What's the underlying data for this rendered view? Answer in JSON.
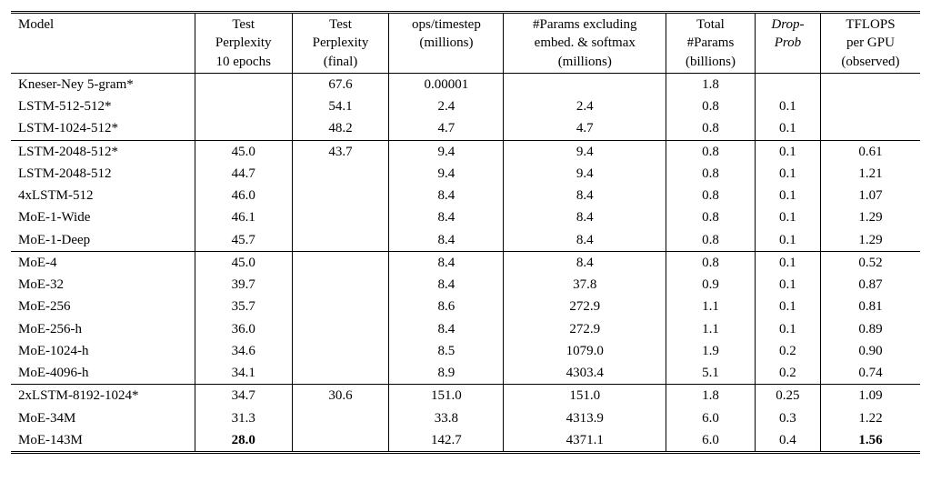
{
  "columns": [
    {
      "key": "model",
      "label": "Model",
      "align": "left"
    },
    {
      "key": "ppl10",
      "label": "Test\nPerplexity\n10 epochs"
    },
    {
      "key": "pplf",
      "label": "Test\nPerplexity\n(final)"
    },
    {
      "key": "ops",
      "label": "ops/timestep\n(millions)"
    },
    {
      "key": "params_ex",
      "label": "#Params excluding\nembed. & softmax\n(millions)"
    },
    {
      "key": "params_tot",
      "label": "Total\n#Params\n(billions)"
    },
    {
      "key": "drop",
      "label": "Drop-\nProb",
      "italic": true
    },
    {
      "key": "tflops",
      "label": "TFLOPS\nper GPU\n(observed)"
    }
  ],
  "groups": [
    {
      "rows": [
        {
          "model": "Kneser-Ney 5-gram*",
          "ppl10": "",
          "pplf": "67.6",
          "ops": "0.00001",
          "params_ex": "",
          "params_tot": "1.8",
          "drop": "",
          "tflops": ""
        },
        {
          "model": "LSTM-512-512*",
          "ppl10": "",
          "pplf": "54.1",
          "ops": "2.4",
          "params_ex": "2.4",
          "params_tot": "0.8",
          "drop": "0.1",
          "tflops": ""
        },
        {
          "model": "LSTM-1024-512*",
          "ppl10": "",
          "pplf": "48.2",
          "ops": "4.7",
          "params_ex": "4.7",
          "params_tot": "0.8",
          "drop": "0.1",
          "tflops": ""
        }
      ]
    },
    {
      "rows": [
        {
          "model": "LSTM-2048-512*",
          "ppl10": "45.0",
          "pplf": "43.7",
          "ops": "9.4",
          "params_ex": "9.4",
          "params_tot": "0.8",
          "drop": "0.1",
          "tflops": "0.61"
        },
        {
          "model": "LSTM-2048-512",
          "ppl10": "44.7",
          "pplf": "",
          "ops": "9.4",
          "params_ex": "9.4",
          "params_tot": "0.8",
          "drop": "0.1",
          "tflops": "1.21"
        },
        {
          "model": "4xLSTM-512",
          "ppl10": "46.0",
          "pplf": "",
          "ops": "8.4",
          "params_ex": "8.4",
          "params_tot": "0.8",
          "drop": "0.1",
          "tflops": "1.07"
        },
        {
          "model": "MoE-1-Wide",
          "ppl10": "46.1",
          "pplf": "",
          "ops": "8.4",
          "params_ex": "8.4",
          "params_tot": "0.8",
          "drop": "0.1",
          "tflops": "1.29"
        },
        {
          "model": "MoE-1-Deep",
          "ppl10": "45.7",
          "pplf": "",
          "ops": "8.4",
          "params_ex": "8.4",
          "params_tot": "0.8",
          "drop": "0.1",
          "tflops": "1.29"
        }
      ]
    },
    {
      "rows": [
        {
          "model": "MoE-4",
          "ppl10": "45.0",
          "pplf": "",
          "ops": "8.4",
          "params_ex": "8.4",
          "params_tot": "0.8",
          "drop": "0.1",
          "tflops": "0.52"
        },
        {
          "model": "MoE-32",
          "ppl10": "39.7",
          "pplf": "",
          "ops": "8.4",
          "params_ex": "37.8",
          "params_tot": "0.9",
          "drop": "0.1",
          "tflops": "0.87"
        },
        {
          "model": "MoE-256",
          "ppl10": "35.7",
          "pplf": "",
          "ops": "8.6",
          "params_ex": "272.9",
          "params_tot": "1.1",
          "drop": "0.1",
          "tflops": "0.81"
        },
        {
          "model": "MoE-256-h",
          "ppl10": "36.0",
          "pplf": "",
          "ops": "8.4",
          "params_ex": "272.9",
          "params_tot": "1.1",
          "drop": "0.1",
          "tflops": "0.89"
        },
        {
          "model": "MoE-1024-h",
          "ppl10": "34.6",
          "pplf": "",
          "ops": "8.5",
          "params_ex": "1079.0",
          "params_tot": "1.9",
          "drop": "0.2",
          "tflops": "0.90"
        },
        {
          "model": "MoE-4096-h",
          "ppl10": "34.1",
          "pplf": "",
          "ops": "8.9",
          "params_ex": "4303.4",
          "params_tot": "5.1",
          "drop": "0.2",
          "tflops": "0.74"
        }
      ]
    },
    {
      "rows": [
        {
          "model": "2xLSTM-8192-1024*",
          "ppl10": "34.7",
          "pplf": "30.6",
          "ops": "151.0",
          "params_ex": "151.0",
          "params_tot": "1.8",
          "drop": "0.25",
          "tflops": "1.09"
        },
        {
          "model": "MoE-34M",
          "ppl10": "31.3",
          "pplf": "",
          "ops": "33.8",
          "params_ex": "4313.9",
          "params_tot": "6.0",
          "drop": "0.3",
          "tflops": "1.22"
        },
        {
          "model": "MoE-143M",
          "ppl10": "28.0",
          "pplf": "",
          "ops": "142.7",
          "params_ex": "4371.1",
          "params_tot": "6.0",
          "drop": "0.4",
          "tflops": "1.56",
          "bold": {
            "ppl10": true,
            "tflops": true
          }
        }
      ]
    }
  ],
  "style": {
    "font_family": "Times New Roman",
    "font_size_pt": 11,
    "text_color": "#000000",
    "background_color": "#ffffff",
    "rule_color": "#000000",
    "vline_after_cols": [
      0,
      1,
      2,
      3,
      4,
      5,
      6
    ]
  }
}
